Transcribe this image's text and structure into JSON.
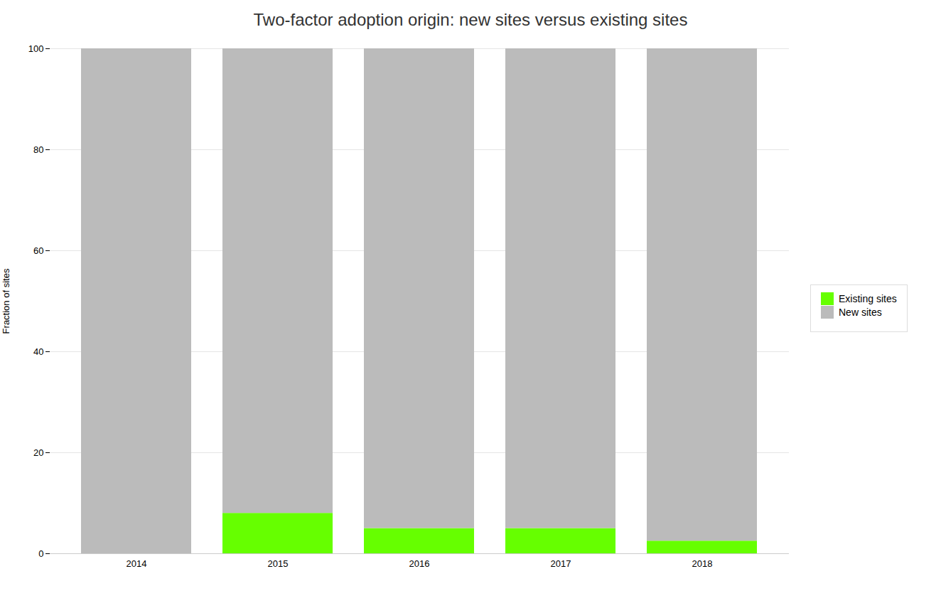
{
  "chart_data": {
    "type": "bar",
    "title": "Two-factor adoption origin: new sites versus existing sites",
    "ylabel": "Fraction of sites",
    "categories": [
      "2014",
      "2015",
      "2016",
      "2017",
      "2018"
    ],
    "series": [
      {
        "name": "Existing sites",
        "color": "#66ff00",
        "values": [
          0,
          8,
          5,
          5,
          2.5
        ]
      },
      {
        "name": "New sites",
        "color": "#bbbbbb",
        "values": [
          100,
          92,
          95,
          95,
          97.5
        ]
      }
    ],
    "ylim": [
      0,
      100
    ],
    "yticks": [
      0,
      20,
      40,
      60,
      80,
      100
    ],
    "grid": true,
    "stacked": true,
    "legend": "right"
  }
}
